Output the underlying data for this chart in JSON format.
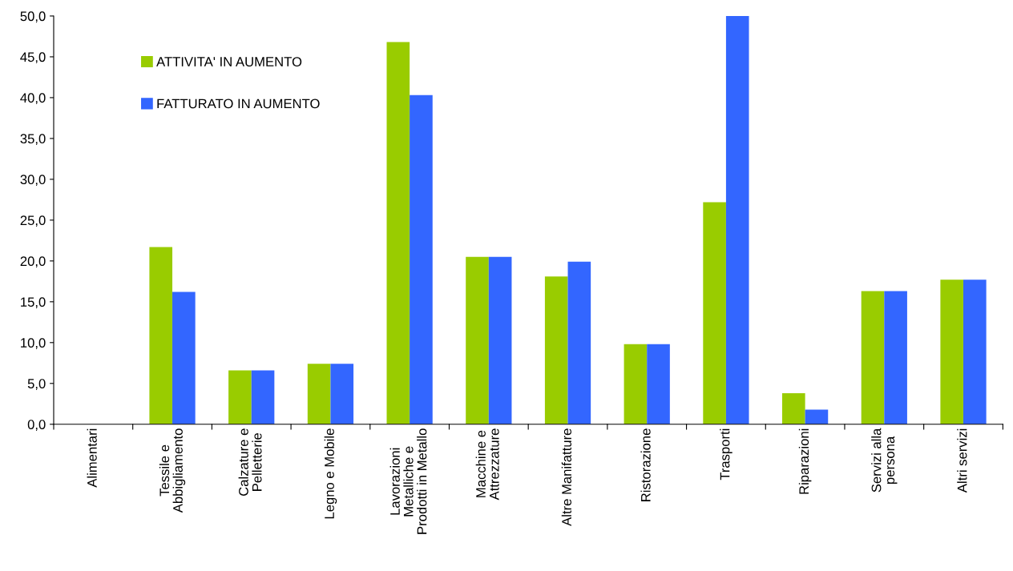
{
  "chart_data": {
    "type": "bar",
    "categories": [
      "Alimentari",
      "Tessile e\nAbbigliamento",
      "Calzature e\nPelletterie",
      "Legno e Mobile",
      "Lavorazioni\nMetalliche e\nProdotti in Metallo",
      "Macchine e\nAttrezzature",
      "Altre Manifatture",
      "Ristorazione",
      "Trasporti",
      "Riparazioni",
      "Servizi alla\npersona",
      "Altri servizi"
    ],
    "series": [
      {
        "name": "ATTIVITA' IN AUMENTO",
        "color": "#99cc00",
        "values": [
          0,
          21.7,
          6.6,
          7.4,
          46.8,
          20.5,
          18.1,
          9.8,
          27.2,
          3.8,
          16.3,
          17.7
        ]
      },
      {
        "name": "FATTURATO IN AUMENTO",
        "color": "#3366ff",
        "values": [
          0,
          16.2,
          6.6,
          7.4,
          40.3,
          20.5,
          19.9,
          9.8,
          50.0,
          1.8,
          16.3,
          17.7
        ]
      }
    ],
    "ylim": [
      0,
      50
    ],
    "yticks": [
      {
        "value": 0,
        "label": "0,0"
      },
      {
        "value": 5,
        "label": "5,0"
      },
      {
        "value": 10,
        "label": "10,0"
      },
      {
        "value": 15,
        "label": "15,0"
      },
      {
        "value": 20,
        "label": "20,0"
      },
      {
        "value": 25,
        "label": "25,0"
      },
      {
        "value": 30,
        "label": "30,0"
      },
      {
        "value": 35,
        "label": "35,0"
      },
      {
        "value": 40,
        "label": "40,0"
      },
      {
        "value": 45,
        "label": "45,0"
      },
      {
        "value": 50,
        "label": "50,0"
      }
    ],
    "grid": false,
    "legend": "top left"
  }
}
